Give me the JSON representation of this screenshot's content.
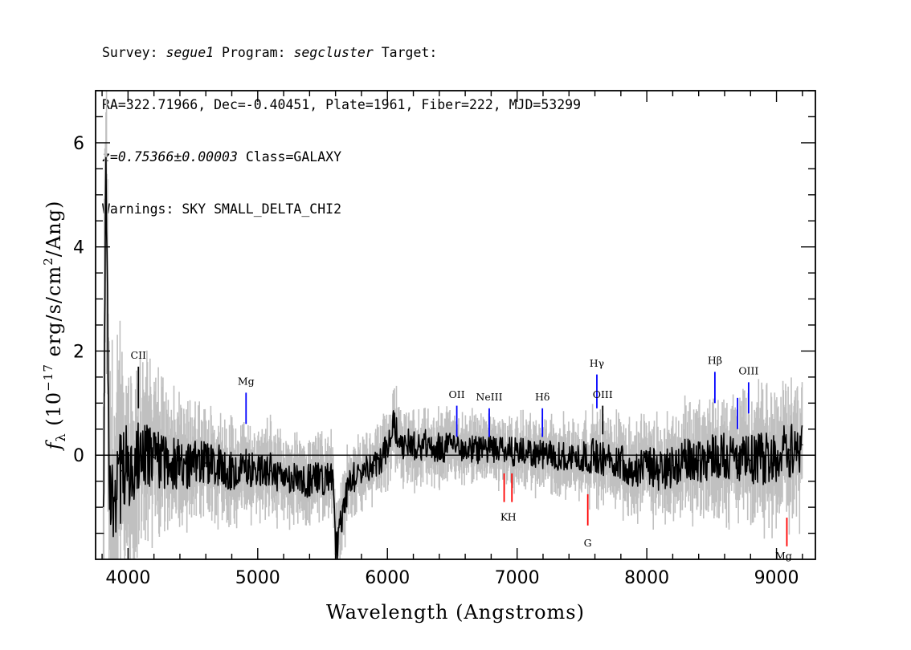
{
  "header": {
    "line1": {
      "survey_label": "Survey: ",
      "survey": "segue1",
      "program_label": " Program: ",
      "program": "segcluster",
      "target_label": " Target:"
    },
    "line2": "RA=322.71966, Dec=-0.40451, Plate=1961, Fiber=222, MJD=53299",
    "line3": {
      "z": "z=0.75366±0.00003",
      "class": " Class=GALAXY"
    },
    "line4": "Warnings: SKY SMALL_DELTA_CHI2"
  },
  "chart_data": {
    "type": "line",
    "xlabel": "Wavelength (Angstroms)",
    "ylabel_parts": {
      "f": "f",
      "sub": "λ",
      "pre": " (10",
      "exp": "−17",
      "mid": " erg/s/cm",
      "exp2": "2",
      "post": "/Ang)"
    },
    "xlim": [
      3750,
      9300
    ],
    "ylim": [
      -2.0,
      7.0
    ],
    "xticks": [
      4000,
      5000,
      6000,
      7000,
      8000,
      9000
    ],
    "yticks": [
      0,
      2,
      4,
      6
    ],
    "grid": false,
    "zero_line": true,
    "colors": {
      "flux": "#000000",
      "error": "#c0c0c0",
      "emission": "#0000ff",
      "absorption": "#ff0000",
      "label": "#000000"
    },
    "series": [
      {
        "role": "flux",
        "x": [
          3810,
          3830,
          3860,
          3900,
          3950,
          4000,
          4100,
          4200,
          4300,
          4400,
          4500,
          4600,
          4700,
          4800,
          4900,
          5000,
          5100,
          5200,
          5300,
          5400,
          5500,
          5580,
          5600,
          5700,
          5800,
          5900,
          6000,
          6050,
          6100,
          6200,
          6300,
          6400,
          6500,
          6600,
          6700,
          6800,
          6900,
          7000,
          7100,
          7200,
          7300,
          7400,
          7500,
          7600,
          7700,
          7800,
          7900,
          8000,
          8100,
          8200,
          8300,
          8400,
          8500,
          8600,
          8700,
          8800,
          8900,
          9000,
          9100,
          9200
        ],
        "y": [
          -1.5,
          5.3,
          -0.8,
          -0.5,
          -0.3,
          -0.2,
          -0.1,
          -0.05,
          -0.1,
          -0.2,
          -0.2,
          -0.15,
          -0.2,
          -0.3,
          -0.2,
          -0.3,
          -0.3,
          -0.4,
          -0.4,
          -0.5,
          -0.45,
          -0.5,
          -1.9,
          -0.5,
          -0.35,
          -0.2,
          0.1,
          0.6,
          0.2,
          0.2,
          0.2,
          0.15,
          0.15,
          0.15,
          0.1,
          0.1,
          0.1,
          0.05,
          0.05,
          0.0,
          0.0,
          -0.05,
          -0.05,
          0.0,
          -0.1,
          -0.1,
          -0.3,
          -0.2,
          -0.3,
          -0.2,
          -0.1,
          -0.1,
          0.0,
          0.0,
          -0.1,
          -0.1,
          -0.05,
          0.0,
          0.1,
          0.2
        ]
      },
      {
        "role": "error",
        "x": [
          3810,
          3900,
          4000,
          4100,
          4200,
          4300,
          4400,
          4500,
          4600,
          4700,
          4800,
          4900,
          5000,
          5200,
          5400,
          5600,
          5800,
          6000,
          6200,
          6400,
          6600,
          6800,
          7000,
          7200,
          7400,
          7600,
          7800,
          8000,
          8200,
          8400,
          8600,
          8800,
          9000,
          9200
        ],
        "y": [
          3.0,
          2.0,
          1.6,
          1.3,
          1.1,
          1.0,
          0.9,
          0.85,
          0.8,
          0.75,
          0.7,
          0.7,
          0.65,
          0.6,
          0.6,
          0.6,
          0.55,
          0.55,
          0.55,
          0.55,
          0.5,
          0.5,
          0.5,
          0.5,
          0.55,
          0.6,
          0.65,
          0.7,
          0.75,
          0.8,
          0.85,
          0.9,
          1.0,
          1.0
        ]
      }
    ],
    "line_markers": [
      {
        "label": "CII",
        "x": 4080,
        "type": "emission",
        "tick": [
          0.9,
          1.7
        ],
        "label_y": 1.85,
        "tick_color": "#000000"
      },
      {
        "label": "Mg",
        "x": 4910,
        "type": "emission",
        "tick": [
          0.6,
          1.2
        ],
        "label_y": 1.35
      },
      {
        "label": "OII",
        "x": 6535,
        "type": "emission",
        "tick": [
          0.35,
          0.95
        ],
        "label_y": 1.1
      },
      {
        "label": "NeIII",
        "x": 6785,
        "type": "emission",
        "tick": [
          0.35,
          0.9
        ],
        "label_y": 1.05
      },
      {
        "label": "Hδ",
        "x": 7195,
        "type": "emission",
        "tick": [
          0.35,
          0.9
        ],
        "label_y": 1.05
      },
      {
        "label": "Hγ",
        "x": 7615,
        "type": "emission",
        "tick": [
          0.9,
          1.55
        ],
        "label_y": 1.7
      },
      {
        "label": "OIII",
        "x": 7660,
        "type": "emission",
        "tick": [
          0.4,
          0.95
        ],
        "label_y": 1.1,
        "tick_color": "#000000"
      },
      {
        "label": "Hβ",
        "x": 8525,
        "type": "emission",
        "tick": [
          1.0,
          1.6
        ],
        "label_y": 1.75
      },
      {
        "label": "OIII",
        "x": 8700,
        "type": "emission",
        "tick": [
          0.5,
          1.1
        ],
        "label_y": null
      },
      {
        "label": "OIII",
        "x": 8785,
        "type": "emission",
        "tick": [
          0.8,
          1.4
        ],
        "label_y": 1.55
      },
      {
        "label": "K",
        "x": 6900,
        "type": "absorption",
        "tick": [
          -0.9,
          -0.35
        ],
        "label_y": -1.25
      },
      {
        "label": "H",
        "x": 6960,
        "type": "absorption",
        "tick": [
          -0.9,
          -0.35
        ],
        "label_y": -1.25
      },
      {
        "label": "G",
        "x": 7545,
        "type": "absorption",
        "tick": [
          -1.35,
          -0.75
        ],
        "label_y": -1.75
      },
      {
        "label": "Mg",
        "x": 9080,
        "type": "absorption",
        "tick": [
          -1.75,
          -1.2
        ],
        "label_y": null
      },
      {
        "label": "Mg",
        "x": 9055,
        "type": "absorption",
        "tick": [
          -2.1,
          -2.1
        ],
        "label_y": -2.0
      }
    ]
  }
}
